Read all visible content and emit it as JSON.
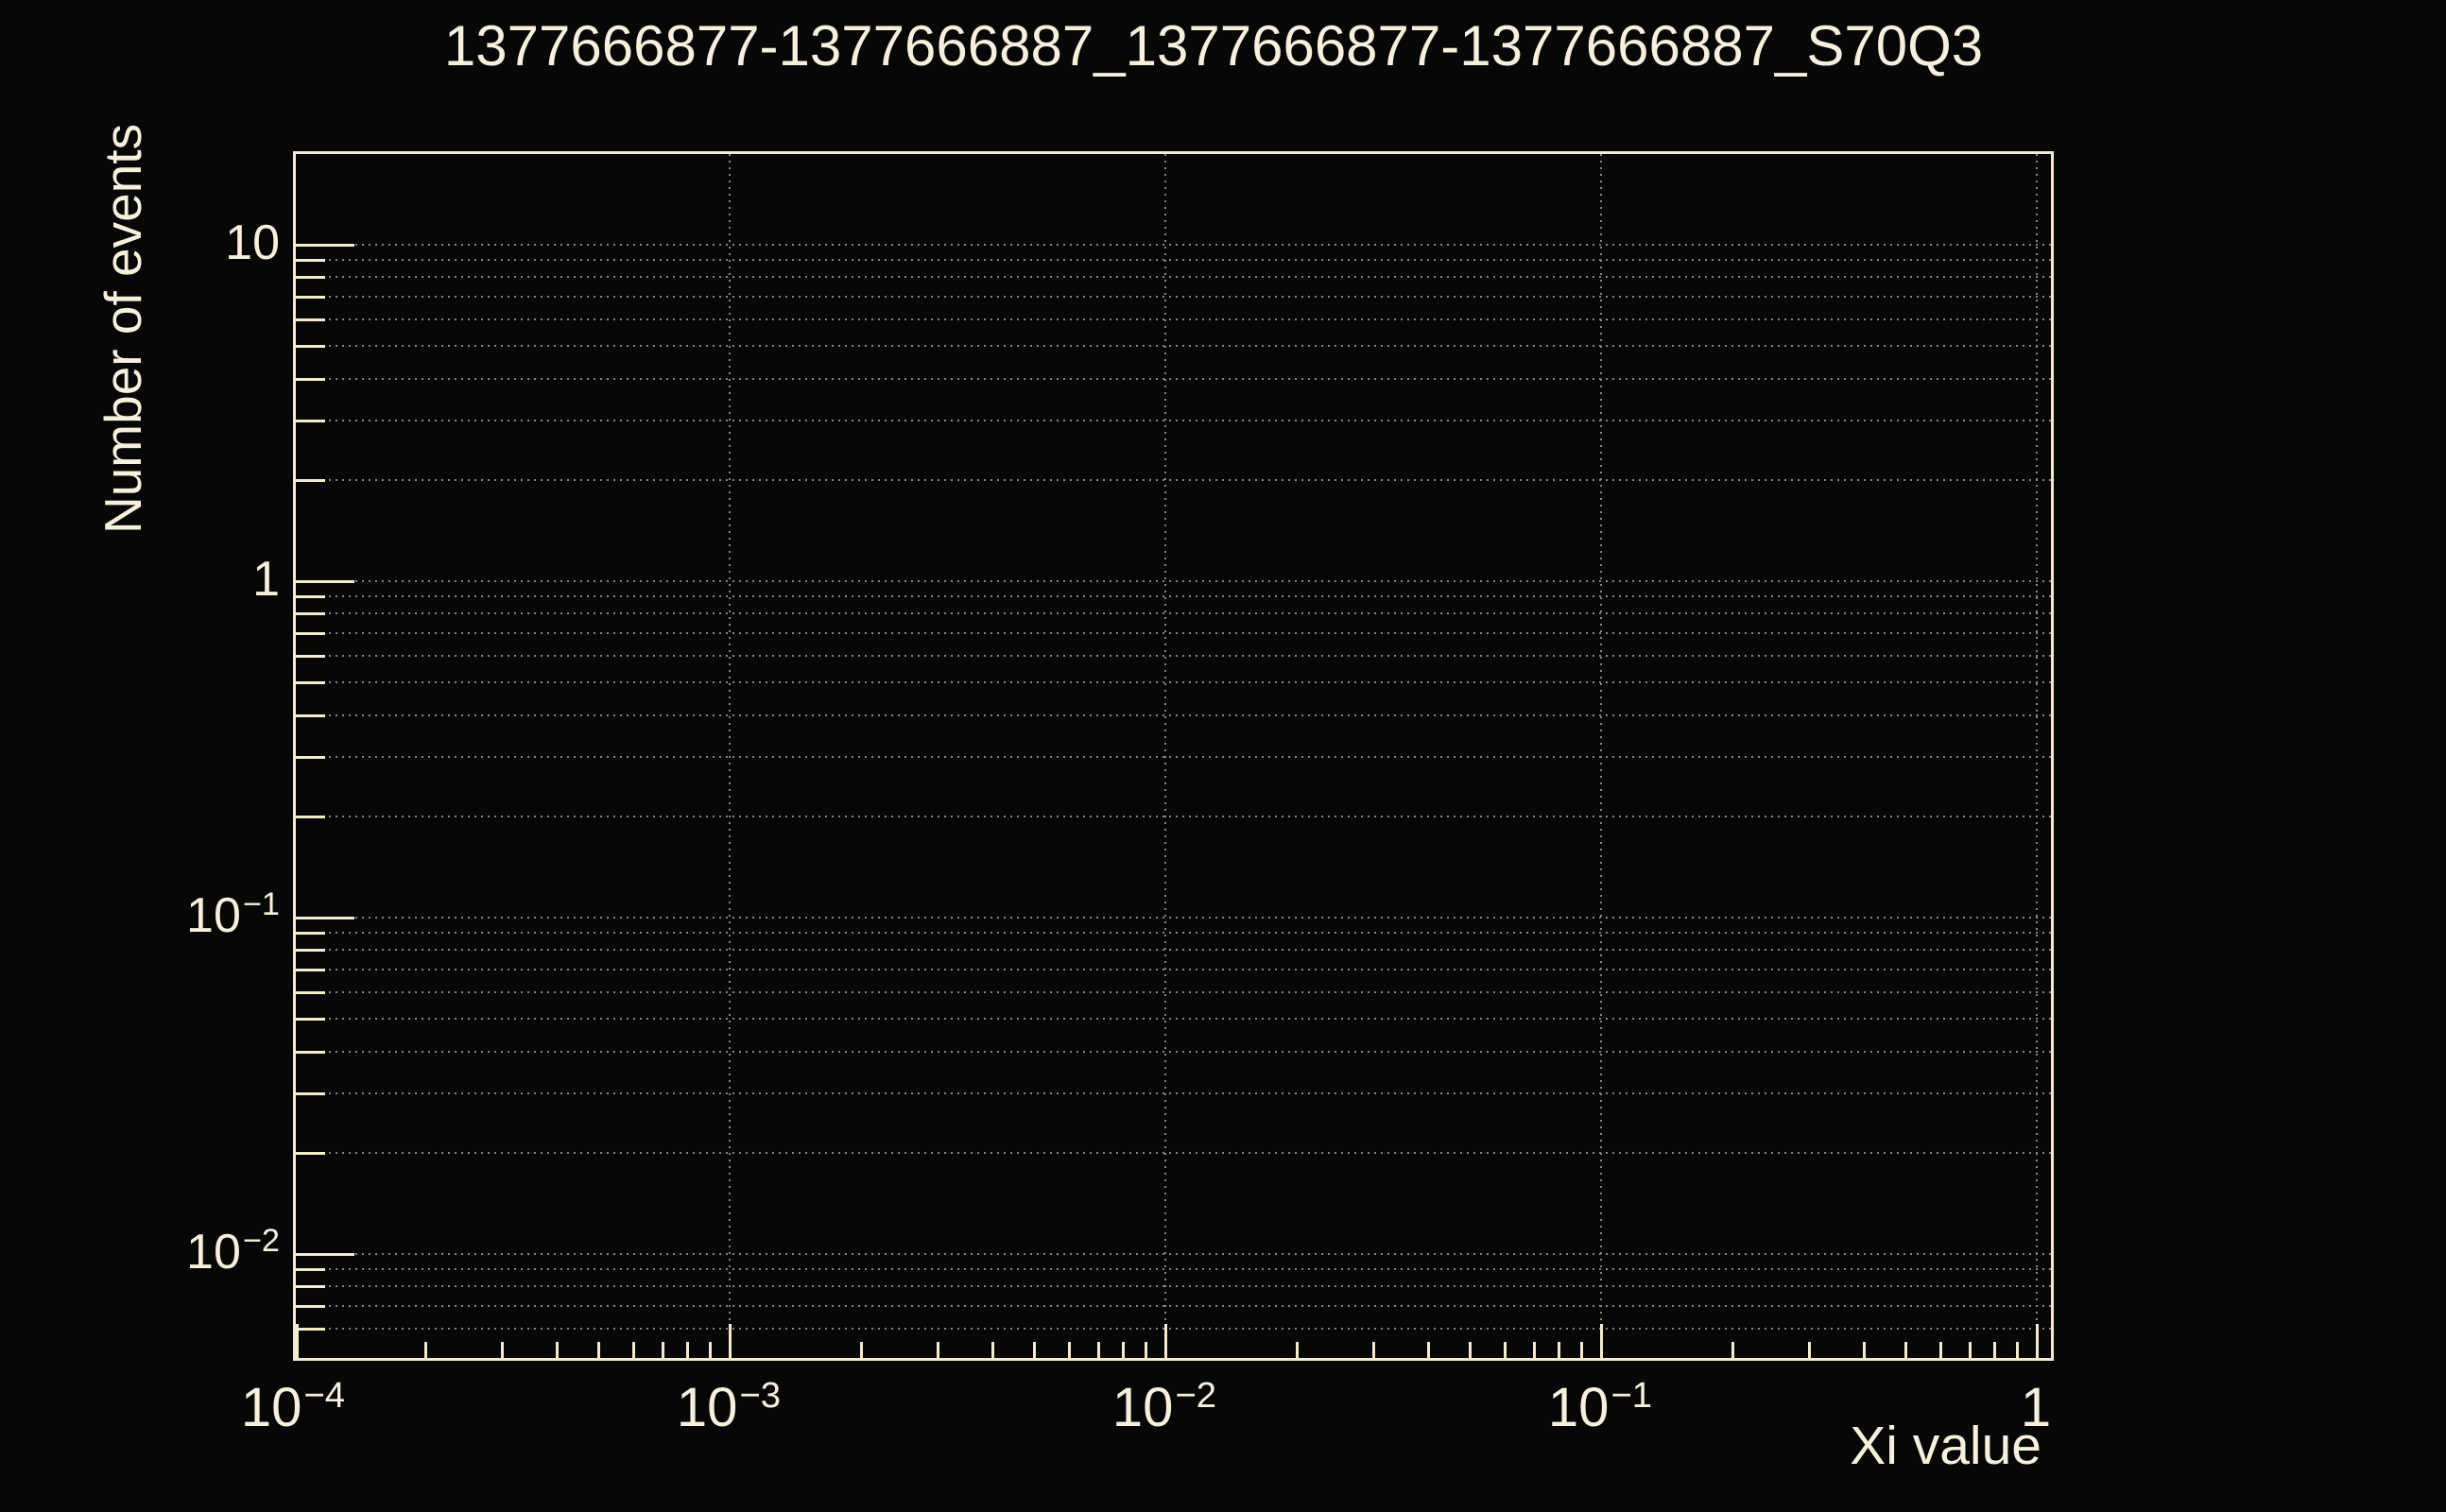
{
  "colors": {
    "background": "#070707",
    "text": "#f6f0dd",
    "axis_line": "#f2ebce",
    "gridline": "#858585"
  },
  "chart_data": {
    "type": "histogram",
    "title": "1377666877-1377666887_1377666877-1377666887_S70Q3",
    "xlabel": "Xi value",
    "ylabel": "Number of events",
    "x_scale": "log",
    "y_scale": "log",
    "x_range": [
      0.0001,
      1.1
    ],
    "y_range": [
      0.0048,
      18.8
    ],
    "x_ticks": [
      {
        "value": 0.0001,
        "base": "10",
        "sup": "−4"
      },
      {
        "value": 0.001,
        "base": "10",
        "sup": "−3"
      },
      {
        "value": 0.01,
        "base": "10",
        "sup": "−2"
      },
      {
        "value": 0.1,
        "base": "10",
        "sup": "−1"
      },
      {
        "value": 1,
        "base": "1",
        "sup": ""
      }
    ],
    "y_ticks": [
      {
        "value": 10,
        "base": "10",
        "sup": ""
      },
      {
        "value": 1,
        "base": "1",
        "sup": ""
      },
      {
        "value": 0.1,
        "base": "10",
        "sup": "−1"
      },
      {
        "value": 0.01,
        "base": "10",
        "sup": "−2"
      }
    ],
    "grid": {
      "style": "dotted",
      "horizontal_on_all_log_ticks": true,
      "vertical_on_x_decades": true
    },
    "legend": null,
    "series": []
  }
}
